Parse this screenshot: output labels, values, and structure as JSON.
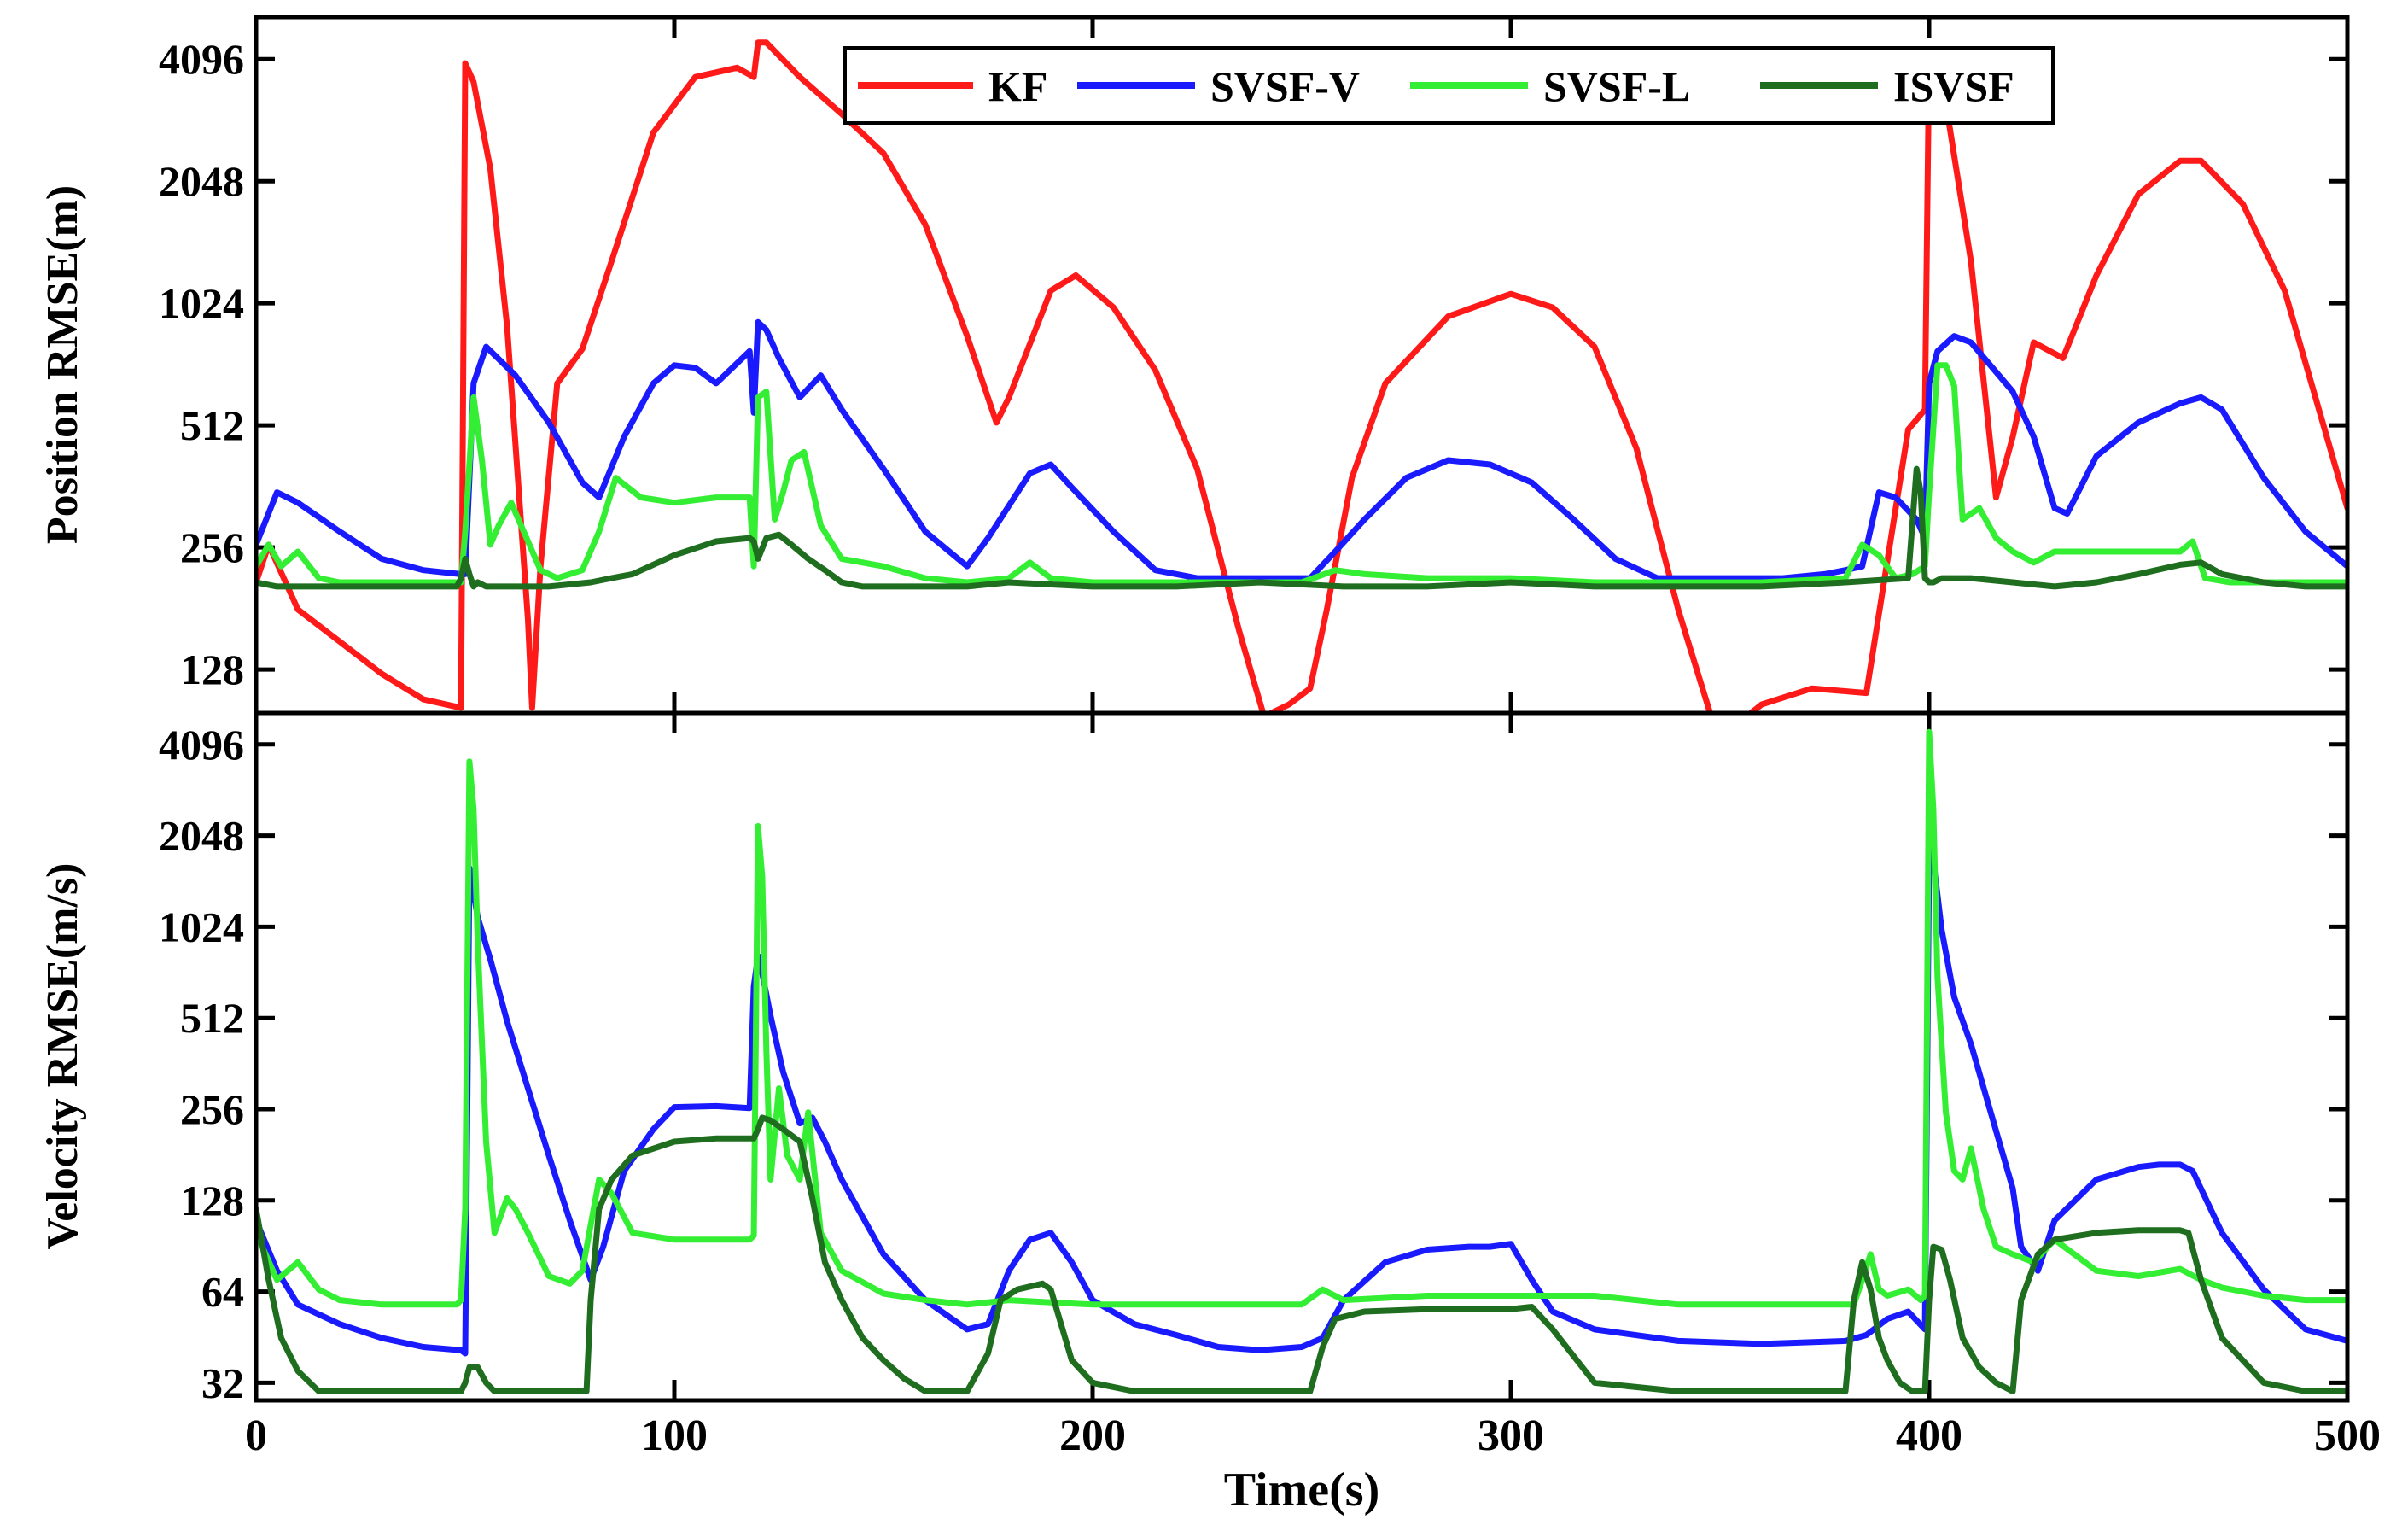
{
  "chart_data": [
    {
      "type": "line",
      "panel": "top",
      "ylabel": "Position RMSE(m)",
      "yscale": "log2",
      "ylim": [
        100,
        5200
      ],
      "xlim": [
        0,
        500
      ],
      "yticks": [
        128,
        256,
        512,
        1024,
        2048,
        4096
      ],
      "ytick_labels": [
        "128",
        "256",
        "512",
        "1024",
        "2048",
        "4096"
      ],
      "legend": "top-right",
      "series": [
        {
          "name": "KF",
          "color": "#ff1a1a",
          "x": [
            0,
            3,
            10,
            20,
            30,
            40,
            49,
            50,
            52,
            56,
            60,
            65,
            66,
            68,
            72,
            78,
            85,
            95,
            105,
            115,
            119,
            120,
            122,
            130,
            140,
            150,
            160,
            170,
            177,
            180,
            190,
            196,
            205,
            215,
            225,
            235,
            241,
            247,
            252,
            256,
            262,
            270,
            285,
            300,
            310,
            320,
            330,
            340,
            349,
            353,
            360,
            372,
            385,
            395,
            399,
            400,
            402,
            410,
            416,
            420,
            425,
            432,
            440,
            450,
            460,
            465,
            475,
            485,
            500
          ],
          "y": [
            210,
            260,
            180,
            150,
            125,
            108,
            103,
            4000,
            3600,
            2200,
            900,
            170,
            103,
            230,
            650,
            790,
            1300,
            2700,
            3700,
            3900,
            3700,
            4500,
            4500,
            3700,
            3000,
            2400,
            1600,
            850,
            520,
            600,
            1100,
            1200,
            1000,
            700,
            400,
            160,
            98,
            105,
            115,
            180,
            380,
            650,
            950,
            1080,
            1000,
            800,
            450,
            180,
            90,
            92,
            105,
            115,
            112,
            500,
            560,
            4200,
            4300,
            1300,
            340,
            480,
            820,
            750,
            1200,
            1900,
            2300,
            2300,
            1800,
            1100,
            320
          ]
        },
        {
          "name": "SVSF-V",
          "color": "#1a1aff",
          "x": [
            0,
            5,
            10,
            20,
            30,
            40,
            49,
            50,
            52,
            55,
            62,
            70,
            78,
            82,
            88,
            95,
            100,
            105,
            110,
            118,
            119,
            120,
            122,
            125,
            130,
            135,
            140,
            150,
            160,
            170,
            175,
            185,
            190,
            195,
            205,
            215,
            225,
            235,
            245,
            252,
            258,
            265,
            275,
            285,
            295,
            305,
            315,
            325,
            335,
            345,
            355,
            365,
            375,
            380,
            384,
            388,
            392,
            397,
            399,
            400,
            402,
            406,
            410,
            420,
            425,
            430,
            433,
            440,
            450,
            460,
            465,
            470,
            480,
            490,
            500
          ],
          "y": [
            260,
            350,
            330,
            280,
            240,
            225,
            220,
            220,
            650,
            800,
            680,
            520,
            370,
            340,
            480,
            650,
            720,
            710,
            650,
            780,
            550,
            920,
            880,
            750,
            600,
            680,
            560,
            400,
            280,
            230,
            270,
            390,
            410,
            360,
            280,
            225,
            215,
            215,
            215,
            215,
            250,
            300,
            380,
            420,
            410,
            370,
            300,
            240,
            215,
            215,
            215,
            215,
            220,
            225,
            230,
            350,
            340,
            300,
            270,
            650,
            780,
            850,
            820,
            620,
            480,
            320,
            310,
            430,
            520,
            580,
            600,
            560,
            380,
            280,
            230
          ]
        },
        {
          "name": "SVSF-L",
          "color": "#33ee33",
          "x": [
            0,
            3,
            6,
            10,
            15,
            20,
            30,
            40,
            49,
            50,
            52,
            54,
            56,
            58,
            61,
            64,
            68,
            72,
            78,
            82,
            86,
            92,
            100,
            110,
            118,
            119,
            120,
            122,
            124,
            126,
            128,
            131,
            135,
            140,
            150,
            160,
            170,
            180,
            185,
            190,
            200,
            210,
            230,
            250,
            258,
            265,
            280,
            300,
            320,
            340,
            360,
            380,
            384,
            388,
            392,
            396,
            399,
            400,
            402,
            404,
            406,
            408,
            412,
            416,
            420,
            425,
            430,
            440,
            450,
            460,
            463,
            466,
            472,
            480,
            490,
            500
          ],
          "y": [
            230,
            260,
            230,
            250,
            215,
            210,
            210,
            210,
            210,
            280,
            600,
            420,
            260,
            290,
            330,
            280,
            225,
            215,
            225,
            280,
            380,
            340,
            330,
            340,
            340,
            230,
            600,
            620,
            300,
            350,
            420,
            440,
            290,
            240,
            230,
            215,
            210,
            215,
            235,
            215,
            210,
            210,
            210,
            210,
            225,
            220,
            215,
            215,
            210,
            210,
            210,
            215,
            260,
            245,
            215,
            220,
            230,
            350,
            720,
            720,
            640,
            300,
            320,
            270,
            250,
            235,
            250,
            250,
            250,
            250,
            265,
            215,
            210,
            210,
            210,
            210
          ]
        },
        {
          "name": "ISVSF",
          "color": "#1f6e1f",
          "x": [
            0,
            5,
            10,
            20,
            30,
            40,
            48,
            49,
            50,
            51,
            52,
            53,
            55,
            60,
            70,
            80,
            85,
            90,
            100,
            110,
            118,
            119,
            120,
            122,
            125,
            128,
            132,
            136,
            140,
            145,
            150,
            160,
            170,
            180,
            200,
            220,
            240,
            260,
            280,
            300,
            320,
            340,
            360,
            380,
            395,
            397,
            398,
            399,
            400,
            401,
            403,
            410,
            420,
            430,
            440,
            450,
            460,
            465,
            470,
            480,
            490,
            500
          ],
          "y": [
            210,
            205,
            205,
            205,
            205,
            205,
            205,
            215,
            240,
            220,
            205,
            210,
            205,
            205,
            205,
            210,
            215,
            220,
            245,
            265,
            270,
            265,
            240,
            270,
            275,
            260,
            240,
            225,
            210,
            205,
            205,
            205,
            205,
            210,
            205,
            205,
            210,
            205,
            205,
            210,
            205,
            205,
            205,
            210,
            215,
            400,
            350,
            215,
            210,
            210,
            215,
            215,
            210,
            205,
            210,
            220,
            232,
            235,
            220,
            210,
            205,
            205
          ]
        }
      ]
    },
    {
      "type": "line",
      "panel": "bottom",
      "ylabel": "Velocity RMSE(m/s)",
      "xlabel": "Time(s)",
      "yscale": "log2",
      "ylim": [
        28,
        5200
      ],
      "xlim": [
        0,
        500
      ],
      "xticks": [
        0,
        100,
        200,
        300,
        400,
        500
      ],
      "xtick_labels": [
        "0",
        "100",
        "200",
        "300",
        "400",
        "500"
      ],
      "yticks": [
        32,
        64,
        128,
        256,
        512,
        1024,
        2048,
        4096
      ],
      "ytick_labels": [
        "32",
        "64",
        "128",
        "256",
        "512",
        "1024",
        "2048",
        "4096"
      ],
      "series": [
        {
          "name": "SVSF-V",
          "color": "#1a1aff",
          "x": [
            0,
            5,
            10,
            20,
            30,
            40,
            49,
            50,
            51,
            53,
            56,
            60,
            65,
            70,
            75,
            80,
            83,
            88,
            95,
            100,
            110,
            118,
            119,
            120,
            121,
            123,
            126,
            130,
            133,
            136,
            140,
            150,
            160,
            170,
            175,
            180,
            185,
            190,
            195,
            200,
            210,
            220,
            230,
            240,
            250,
            255,
            260,
            270,
            280,
            290,
            295,
            300,
            305,
            310,
            320,
            340,
            360,
            380,
            385,
            390,
            395,
            399,
            400,
            401,
            403,
            406,
            410,
            420,
            422,
            426,
            430,
            440,
            450,
            455,
            460,
            463,
            470,
            480,
            490,
            500
          ],
          "y": [
            110,
            75,
            58,
            50,
            45,
            42,
            41,
            40,
            1600,
            1100,
            800,
            500,
            300,
            180,
            110,
            70,
            90,
            160,
            220,
            260,
            262,
            258,
            650,
            820,
            720,
            520,
            340,
            230,
            240,
            200,
            150,
            85,
            60,
            48,
            50,
            75,
            95,
            100,
            80,
            60,
            50,
            46,
            42,
            41,
            42,
            45,
            60,
            80,
            88,
            90,
            90,
            92,
            70,
            55,
            48,
            44,
            43,
            44,
            46,
            52,
            55,
            48,
            1900,
            1700,
            1000,
            600,
            420,
            140,
            90,
            75,
            110,
            150,
            165,
            168,
            168,
            160,
            100,
            65,
            48,
            44
          ]
        },
        {
          "name": "SVSF-L",
          "color": "#33ee33",
          "x": [
            0,
            5,
            10,
            15,
            20,
            30,
            40,
            48,
            49,
            50,
            51,
            52,
            53,
            55,
            57,
            60,
            62,
            65,
            70,
            75,
            78,
            82,
            85,
            90,
            100,
            110,
            118,
            119,
            120,
            121,
            122,
            123,
            125,
            127,
            130,
            132,
            135,
            140,
            150,
            160,
            170,
            180,
            200,
            220,
            240,
            250,
            255,
            260,
            280,
            300,
            320,
            340,
            360,
            380,
            382,
            384,
            386,
            388,
            390,
            395,
            398,
            399,
            400,
            401,
            402,
            404,
            406,
            408,
            410,
            413,
            416,
            420,
            425,
            430,
            440,
            450,
            460,
            465,
            470,
            480,
            490,
            500
          ],
          "y": [
            100,
            70,
            80,
            65,
            60,
            58,
            58,
            58,
            60,
            120,
            3600,
            2500,
            900,
            200,
            100,
            130,
            120,
            100,
            72,
            68,
            75,
            150,
            135,
            100,
            95,
            95,
            95,
            98,
            2200,
            1500,
            400,
            150,
            300,
            180,
            150,
            250,
            100,
            75,
            63,
            60,
            58,
            60,
            58,
            58,
            58,
            58,
            65,
            60,
            62,
            62,
            62,
            58,
            58,
            58,
            58,
            70,
            85,
            65,
            62,
            65,
            60,
            62,
            4500,
            2500,
            700,
            250,
            160,
            150,
            190,
            120,
            90,
            85,
            80,
            95,
            75,
            72,
            76,
            70,
            66,
            62,
            60,
            60
          ]
        },
        {
          "name": "ISVSF",
          "color": "#1f6e1f",
          "x": [
            0,
            3,
            6,
            10,
            15,
            20,
            30,
            40,
            49,
            50,
            51,
            53,
            55,
            57,
            60,
            70,
            79,
            80,
            82,
            85,
            90,
            100,
            110,
            119,
            120,
            121,
            123,
            126,
            130,
            133,
            136,
            140,
            145,
            150,
            155,
            160,
            170,
            175,
            178,
            182,
            188,
            190,
            195,
            200,
            210,
            230,
            252,
            255,
            258,
            265,
            280,
            300,
            305,
            310,
            320,
            340,
            360,
            380,
            382,
            384,
            386,
            388,
            390,
            393,
            396,
            399,
            400,
            401,
            403,
            405,
            408,
            412,
            416,
            420,
            422,
            426,
            430,
            440,
            450,
            460,
            462,
            465,
            470,
            480,
            490,
            500
          ],
          "y": [
            120,
            70,
            45,
            35,
            30,
            30,
            30,
            30,
            30,
            32,
            36,
            36,
            32,
            30,
            30,
            30,
            30,
            60,
            120,
            150,
            180,
            200,
            205,
            205,
            220,
            240,
            235,
            220,
            200,
            130,
            80,
            60,
            45,
            38,
            33,
            30,
            30,
            40,
            60,
            65,
            68,
            65,
            38,
            32,
            30,
            30,
            30,
            42,
            52,
            55,
            56,
            56,
            57,
            48,
            32,
            30,
            30,
            30,
            60,
            80,
            65,
            45,
            38,
            32,
            30,
            30,
            60,
            90,
            88,
            70,
            45,
            36,
            32,
            30,
            60,
            85,
            95,
            100,
            102,
            102,
            100,
            70,
            45,
            32,
            30,
            30
          ]
        }
      ]
    }
  ]
}
